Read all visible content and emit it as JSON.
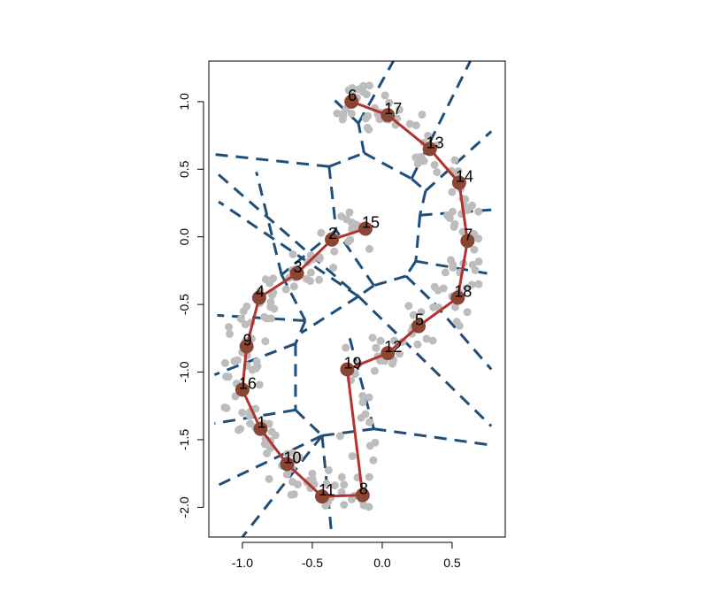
{
  "chart_data": {
    "type": "scatter",
    "title": "",
    "xlabel": "",
    "ylabel": "",
    "xlim": [
      -1.24,
      0.88
    ],
    "ylim": [
      -2.22,
      1.3
    ],
    "x_ticks": [
      -1.0,
      -0.5,
      0.0,
      0.5
    ],
    "x_tick_labels": [
      "-1.0",
      "-0.5",
      "0.0",
      "0.5"
    ],
    "y_ticks": [
      -2.0,
      -1.5,
      -1.0,
      -0.5,
      0.0,
      0.5,
      1.0
    ],
    "y_tick_labels": [
      "-2.0",
      "-1.5",
      "-1.0",
      "-0.5",
      "0.0",
      "0.5",
      "1.0"
    ],
    "colors": {
      "points": "#bdbdbd",
      "nodes": "#8b4533",
      "path": "#b3312e",
      "voronoi": "#1f4e79"
    },
    "nodes": [
      {
        "label": "1",
        "x": -0.87,
        "y": -1.42
      },
      {
        "label": "2",
        "x": -0.36,
        "y": -0.02
      },
      {
        "label": "3",
        "x": -0.61,
        "y": -0.27
      },
      {
        "label": "4",
        "x": -0.88,
        "y": -0.45
      },
      {
        "label": "5",
        "x": 0.26,
        "y": -0.66
      },
      {
        "label": "6",
        "x": -0.22,
        "y": 1.0
      },
      {
        "label": "7",
        "x": 0.61,
        "y": -0.03
      },
      {
        "label": "8",
        "x": -0.14,
        "y": -1.91
      },
      {
        "label": "9",
        "x": -0.97,
        "y": -0.81
      },
      {
        "label": "10",
        "x": -0.68,
        "y": -1.68
      },
      {
        "label": "11",
        "x": -0.43,
        "y": -1.92
      },
      {
        "label": "12",
        "x": 0.04,
        "y": -0.86
      },
      {
        "label": "13",
        "x": 0.34,
        "y": 0.65
      },
      {
        "label": "14",
        "x": 0.55,
        "y": 0.4
      },
      {
        "label": "15",
        "x": -0.12,
        "y": 0.06
      },
      {
        "label": "16",
        "x": -1.0,
        "y": -1.13
      },
      {
        "label": "17",
        "x": 0.04,
        "y": 0.9
      },
      {
        "label": "18",
        "x": 0.54,
        "y": -0.45
      },
      {
        "label": "19",
        "x": -0.25,
        "y": -0.98
      }
    ],
    "path": [
      {
        "label": "15",
        "x": -0.12,
        "y": 0.06
      },
      {
        "label": "2",
        "x": -0.36,
        "y": -0.02
      },
      {
        "label": "3",
        "x": -0.61,
        "y": -0.27
      },
      {
        "label": "4",
        "x": -0.88,
        "y": -0.45
      },
      {
        "label": "9",
        "x": -0.97,
        "y": -0.81
      },
      {
        "label": "16",
        "x": -1.0,
        "y": -1.13
      },
      {
        "label": "1",
        "x": -0.87,
        "y": -1.42
      },
      {
        "label": "10",
        "x": -0.68,
        "y": -1.68
      },
      {
        "label": "11",
        "x": -0.43,
        "y": -1.92
      },
      {
        "label": "8",
        "x": -0.14,
        "y": -1.91
      },
      {
        "label": "19",
        "x": -0.25,
        "y": -0.98
      },
      {
        "label": "12",
        "x": 0.04,
        "y": -0.86
      },
      {
        "label": "5",
        "x": 0.26,
        "y": -0.66
      },
      {
        "label": "18",
        "x": 0.54,
        "y": -0.45
      },
      {
        "label": "7",
        "x": 0.61,
        "y": -0.03
      },
      {
        "label": "14",
        "x": 0.55,
        "y": 0.4
      },
      {
        "label": "13",
        "x": 0.34,
        "y": 0.65
      },
      {
        "label": "17",
        "x": 0.04,
        "y": 0.9
      },
      {
        "label": "6",
        "x": -0.22,
        "y": 1.0
      }
    ],
    "voronoi_edges": [
      [
        [
          -0.38,
          0.52
        ],
        [
          -0.13,
          0.62
        ]
      ],
      [
        [
          -0.38,
          0.52
        ],
        [
          -1.2,
          0.61
        ]
      ],
      [
        [
          -0.38,
          0.52
        ],
        [
          -0.33,
          0.05
        ]
      ],
      [
        [
          -0.13,
          0.62
        ],
        [
          -0.17,
          0.84
        ]
      ],
      [
        [
          -0.17,
          0.84
        ],
        [
          0.08,
          1.3
        ]
      ],
      [
        [
          -0.17,
          0.84
        ],
        [
          -0.35,
          1.02
        ]
      ],
      [
        [
          -0.13,
          0.62
        ],
        [
          0.21,
          0.43
        ]
      ],
      [
        [
          0.21,
          0.43
        ],
        [
          0.63,
          1.3
        ]
      ],
      [
        [
          0.21,
          0.43
        ],
        [
          0.31,
          0.34
        ]
      ],
      [
        [
          0.31,
          0.34
        ],
        [
          0.78,
          0.78
        ]
      ],
      [
        [
          0.31,
          0.34
        ],
        [
          0.27,
          0.16
        ]
      ],
      [
        [
          0.27,
          0.16
        ],
        [
          0.78,
          0.2
        ]
      ],
      [
        [
          0.27,
          0.16
        ],
        [
          0.24,
          -0.18
        ]
      ],
      [
        [
          0.24,
          -0.18
        ],
        [
          0.75,
          -0.27
        ]
      ],
      [
        [
          0.24,
          -0.18
        ],
        [
          0.17,
          -0.29
        ]
      ],
      [
        [
          0.17,
          -0.29
        ],
        [
          -0.06,
          -0.36
        ]
      ],
      [
        [
          0.17,
          -0.29
        ],
        [
          0.37,
          -0.49
        ]
      ],
      [
        [
          0.37,
          -0.49
        ],
        [
          0.78,
          -0.98
        ]
      ],
      [
        [
          -0.06,
          -0.36
        ],
        [
          -0.33,
          0.05
        ]
      ],
      [
        [
          -0.06,
          -0.36
        ],
        [
          -0.17,
          -0.44
        ]
      ],
      [
        [
          -0.17,
          -0.44
        ],
        [
          -1.17,
          0.26
        ]
      ],
      [
        [
          -0.17,
          -0.44
        ],
        [
          -0.58,
          -0.71
        ]
      ],
      [
        [
          -1.17,
          0.46
        ],
        [
          -0.17,
          -0.44
        ]
      ],
      [
        [
          -0.17,
          -0.44
        ],
        [
          0.78,
          -1.4
        ]
      ],
      [
        [
          -0.33,
          0.05
        ],
        [
          -0.72,
          -0.28
        ]
      ],
      [
        [
          -0.72,
          -0.28
        ],
        [
          -0.9,
          0.48
        ]
      ],
      [
        [
          -0.72,
          -0.28
        ],
        [
          -0.55,
          -0.62
        ]
      ],
      [
        [
          -0.55,
          -0.62
        ],
        [
          -1.18,
          -0.58
        ]
      ],
      [
        [
          -0.55,
          -0.62
        ],
        [
          -0.62,
          -0.79
        ]
      ],
      [
        [
          -0.62,
          -0.79
        ],
        [
          -1.2,
          -1.02
        ]
      ],
      [
        [
          -0.62,
          -0.79
        ],
        [
          -0.62,
          -1.28
        ]
      ],
      [
        [
          -0.62,
          -1.28
        ],
        [
          -1.2,
          -1.38
        ]
      ],
      [
        [
          -0.62,
          -1.28
        ],
        [
          -0.43,
          -1.47
        ]
      ],
      [
        [
          -0.43,
          -1.47
        ],
        [
          -1.2,
          -1.85
        ]
      ],
      [
        [
          -0.43,
          -1.47
        ],
        [
          -0.06,
          -1.42
        ]
      ],
      [
        [
          -0.06,
          -1.42
        ],
        [
          0.78,
          -1.54
        ]
      ],
      [
        [
          -0.06,
          -1.42
        ],
        [
          -0.24,
          -0.72
        ]
      ],
      [
        [
          -0.43,
          -1.47
        ],
        [
          -1.0,
          -2.22
        ]
      ],
      [
        [
          -0.43,
          -1.47
        ],
        [
          -0.36,
          -2.22
        ]
      ]
    ]
  }
}
